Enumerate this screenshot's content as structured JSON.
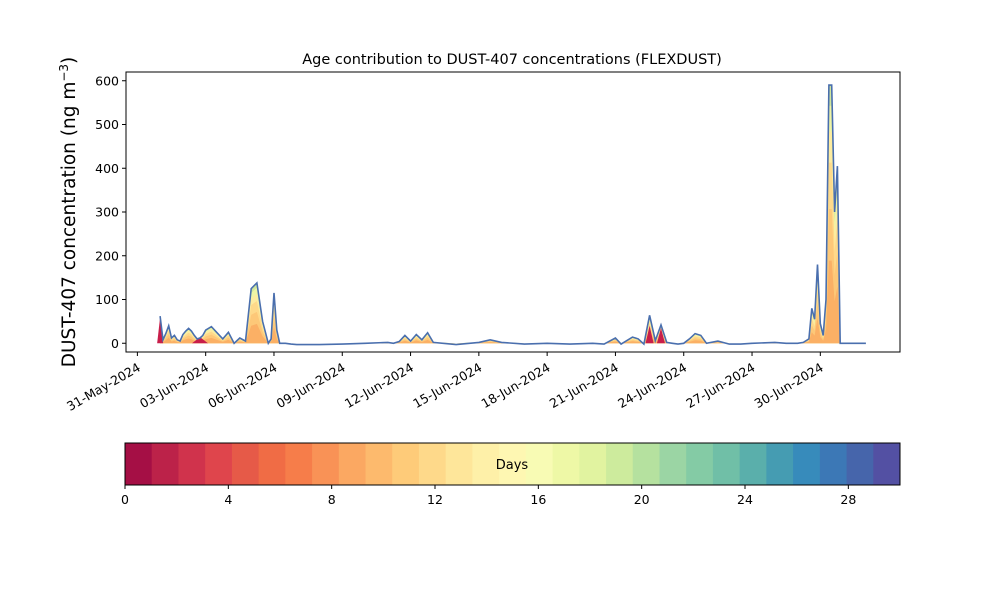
{
  "chart_data": {
    "type": "area",
    "title": "Age contribution to DUST-407 concentrations (FLEXDUST)",
    "ylabel": "DUST-407 concentration (ng m",
    "ylabel_sup": "−3",
    "ylabel_close": ")",
    "xlabel": "",
    "ylim": [
      -20,
      620
    ],
    "yticks": [
      0,
      100,
      200,
      300,
      400,
      500,
      600
    ],
    "xlim": [
      "2024-05-30T12:00",
      "2024-07-03T12:00"
    ],
    "xticks": [
      "31-May-2024",
      "03-Jun-2024",
      "06-Jun-2024",
      "09-Jun-2024",
      "12-Jun-2024",
      "15-Jun-2024",
      "18-Jun-2024",
      "21-Jun-2024",
      "24-Jun-2024",
      "27-Jun-2024",
      "30-Jun-2024"
    ],
    "grid": false,
    "legend": "none",
    "colorbar": {
      "label": "Days",
      "min": 0,
      "max": 30,
      "ticks": [
        0,
        4,
        8,
        12,
        16,
        20,
        24,
        28
      ],
      "colors": [
        "#a50f45",
        "#bc2249",
        "#d0334c",
        "#df454c",
        "#e65a48",
        "#f06c45",
        "#f67d4a",
        "#f99256",
        "#fba862",
        "#fdba6d",
        "#fecb79",
        "#fed98a",
        "#fee69a",
        "#fef0a8",
        "#fef7b2",
        "#f8fbb4",
        "#eef8a6",
        "#e1f3a0",
        "#cdeb9d",
        "#b5e19f",
        "#9bd5a4",
        "#84cba5",
        "#70bfa7",
        "#5aafab",
        "#459cb2",
        "#378bbb",
        "#3c78b6",
        "#4665ab",
        "#5350a3"
      ]
    },
    "series": [
      {
        "x": [
          "2024-06-01T00:00",
          "2024-06-01T03:00",
          "2024-06-01T06:00",
          "2024-06-01T09:00",
          "2024-06-01T12:00",
          "2024-06-01T15:00",
          "2024-06-01T18:00",
          "2024-06-01T21:00",
          "2024-06-02T00:00",
          "2024-06-02T03:00",
          "2024-06-02T06:00",
          "2024-06-02T09:00",
          "2024-06-02T12:00",
          "2024-06-02T15:00",
          "2024-06-02T18:00",
          "2024-06-02T21:00",
          "2024-06-03T00:00",
          "2024-06-03T06:00",
          "2024-06-03T12:00",
          "2024-06-03T18:00",
          "2024-06-04T00:00",
          "2024-06-04T06:00",
          "2024-06-04T12:00",
          "2024-06-04T18:00",
          "2024-06-05T00:00",
          "2024-06-05T06:00",
          "2024-06-05T12:00",
          "2024-06-05T18:00",
          "2024-06-05T21:00",
          "2024-06-06T00:00",
          "2024-06-06T03:00",
          "2024-06-06T06:00",
          "2024-06-06T09:00",
          "2024-06-06T12:00",
          "2024-06-06T18:00",
          "2024-06-07T00:00",
          "2024-06-08T00:00",
          "2024-06-09T00:00",
          "2024-06-10T00:00",
          "2024-06-11T00:00",
          "2024-06-11T06:00",
          "2024-06-11T12:00",
          "2024-06-11T18:00",
          "2024-06-12T00:00",
          "2024-06-12T06:00",
          "2024-06-12T12:00",
          "2024-06-12T18:00",
          "2024-06-13T00:00",
          "2024-06-14T00:00",
          "2024-06-15T00:00",
          "2024-06-15T12:00",
          "2024-06-16T00:00",
          "2024-06-17T00:00",
          "2024-06-18T00:00",
          "2024-06-19T00:00",
          "2024-06-20T00:00",
          "2024-06-20T12:00",
          "2024-06-21T00:00",
          "2024-06-21T06:00",
          "2024-06-21T18:00",
          "2024-06-22T00:00",
          "2024-06-22T06:00",
          "2024-06-22T12:00",
          "2024-06-22T18:00",
          "2024-06-23T00:00",
          "2024-06-23T06:00",
          "2024-06-23T12:00",
          "2024-06-23T18:00",
          "2024-06-24T00:00",
          "2024-06-24T06:00",
          "2024-06-24T12:00",
          "2024-06-24T18:00",
          "2024-06-25T00:00",
          "2024-06-25T12:00",
          "2024-06-26T00:00",
          "2024-06-26T12:00",
          "2024-06-27T00:00",
          "2024-06-28T00:00",
          "2024-06-28T12:00",
          "2024-06-29T00:00",
          "2024-06-29T06:00",
          "2024-06-29T12:00",
          "2024-06-29T15:00",
          "2024-06-29T18:00",
          "2024-06-29T21:00",
          "2024-06-30T00:00",
          "2024-06-30T03:00",
          "2024-06-30T06:00",
          "2024-06-30T09:00",
          "2024-06-30T12:00",
          "2024-06-30T15:00",
          "2024-06-30T18:00",
          "2024-06-30T21:00",
          "2024-07-01T00:00",
          "2024-07-01T03:00",
          "2024-07-01T06:00",
          "2024-07-01T09:00",
          "2024-07-01T12:00",
          "2024-07-01T15:00",
          "2024-07-01T18:00",
          "2024-07-01T21:00",
          "2024-07-02T00:00"
        ],
        "total": [
          62,
          8,
          22,
          40,
          12,
          18,
          8,
          5,
          20,
          28,
          34,
          28,
          18,
          10,
          12,
          18,
          30,
          38,
          24,
          10,
          25,
          0,
          12,
          5,
          125,
          138,
          50,
          0,
          10,
          115,
          30,
          0,
          0,
          0,
          -2,
          -3,
          -3,
          -2,
          0,
          2,
          0,
          4,
          18,
          5,
          20,
          8,
          24,
          2,
          -3,
          2,
          8,
          2,
          -2,
          0,
          -2,
          0,
          -2,
          12,
          -2,
          14,
          10,
          -2,
          64,
          6,
          42,
          2,
          0,
          -2,
          0,
          10,
          22,
          18,
          0,
          5,
          -2,
          -2,
          0,
          2,
          0,
          0,
          2,
          10,
          80,
          55,
          180,
          45,
          18,
          100,
          590,
          590,
          300,
          405,
          0,
          0,
          0,
          0,
          0,
          0,
          0,
          0,
          0,
          0
        ]
      }
    ]
  }
}
